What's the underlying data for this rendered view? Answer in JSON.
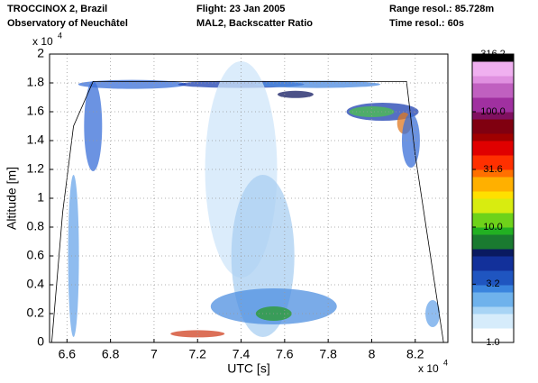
{
  "header": {
    "left": [
      "TROCCINOX 2, Brazil",
      "Observatory of Neuchâtel"
    ],
    "center": [
      "Flight: 23 Jan 2005",
      "MAL2, Backscatter Ratio"
    ],
    "right": [
      "Range resol.: 85.728m",
      "Time resol.: 60s"
    ]
  },
  "chart_data": {
    "type": "heatmap",
    "x_label": "UTC [s]",
    "y_label": "Altitude [m]",
    "x_exponent": {
      "base": "x 10",
      "power": "4"
    },
    "y_exponent": {
      "base": "x 10",
      "power": "4"
    },
    "xlim": [
      6.52,
      8.35
    ],
    "xticks": [
      6.6,
      6.8,
      7,
      7.2,
      7.4,
      7.6,
      7.8,
      8,
      8.2
    ],
    "ylim": [
      0,
      2
    ],
    "yticks": [
      0,
      0.2,
      0.4,
      0.6,
      0.8,
      1,
      1.2,
      1.4,
      1.6,
      1.8,
      2
    ],
    "grid": true,
    "colorbar": {
      "scale": "log",
      "lim": [
        1,
        316.2
      ],
      "ticks": [
        {
          "value": 1,
          "label": "1.0"
        },
        3.2,
        {
          "value": 10,
          "label": "10.0"
        },
        31.6,
        {
          "value": 100,
          "label": "100.0"
        },
        316.2
      ]
    }
  }
}
